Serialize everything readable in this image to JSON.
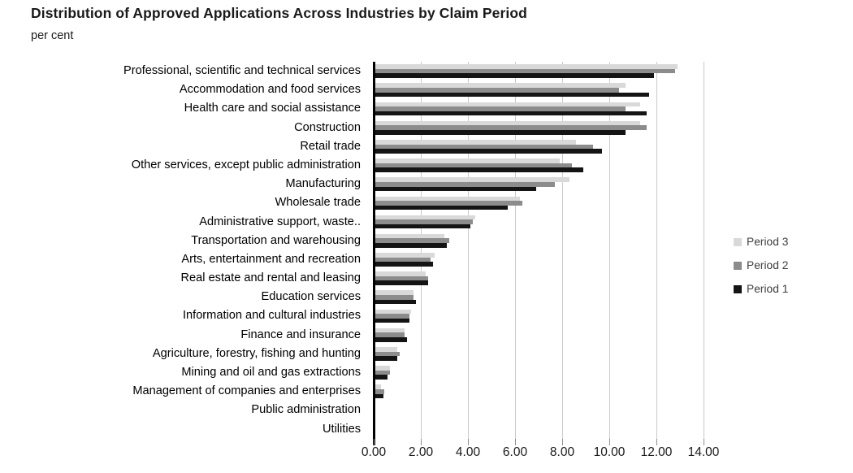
{
  "title": "Distribution of Approved Applications Across Industries by Claim Period",
  "subtitle": "per cent",
  "legend": [
    {
      "label": "Period 3",
      "color": "#d9d9d9"
    },
    {
      "label": "Period 2",
      "color": "#8c8c8c"
    },
    {
      "label": "Period 1",
      "color": "#141414"
    }
  ],
  "chart_data": {
    "type": "bar",
    "orientation": "horizontal",
    "title": "Distribution of Approved Applications Across Industries by Claim Period",
    "ylabel": "",
    "xlabel": "per cent",
    "xlim": [
      0,
      14
    ],
    "x_ticks": [
      "0.00",
      "2.00",
      "4.00",
      "6.00",
      "8.00",
      "10.00",
      "12.00",
      "14.00"
    ],
    "grid": true,
    "legend_position": "right",
    "categories": [
      "Professional, scientific and technical services",
      "Accommodation and food services",
      "Health care and social assistance",
      "Construction",
      "Retail trade",
      "Other services, except public administration",
      "Manufacturing",
      "Wholesale trade",
      "Administrative support, waste..",
      "Transportation and warehousing",
      "Arts, entertainment and recreation",
      "Real estate and rental and leasing",
      "Education services",
      "Information and cultural industries",
      "Finance and insurance",
      "Agriculture, forestry, fishing and hunting",
      "Mining and oil and gas extractions",
      "Management of companies and enterprises",
      "Public administration",
      "Utilities"
    ],
    "series": [
      {
        "name": "Period 1",
        "color": "#141414",
        "values": [
          11.9,
          11.7,
          11.6,
          10.7,
          9.7,
          8.9,
          6.9,
          5.7,
          4.1,
          3.1,
          2.5,
          2.3,
          1.8,
          1.5,
          1.4,
          1.0,
          0.6,
          0.4,
          0.0,
          0.0
        ]
      },
      {
        "name": "Period 2",
        "color": "#8c8c8c",
        "values": [
          12.8,
          10.4,
          10.7,
          11.6,
          9.3,
          8.4,
          7.7,
          6.3,
          4.2,
          3.2,
          2.4,
          2.3,
          1.7,
          1.5,
          1.3,
          1.1,
          0.7,
          0.45,
          0.0,
          0.0
        ]
      },
      {
        "name": "Period 3",
        "color": "#d9d9d9",
        "values": [
          12.9,
          10.7,
          11.3,
          11.3,
          8.6,
          7.9,
          8.3,
          6.2,
          4.3,
          3.0,
          2.6,
          2.2,
          1.7,
          1.6,
          1.3,
          1.0,
          0.7,
          0.3,
          0.0,
          0.0
        ]
      }
    ]
  }
}
